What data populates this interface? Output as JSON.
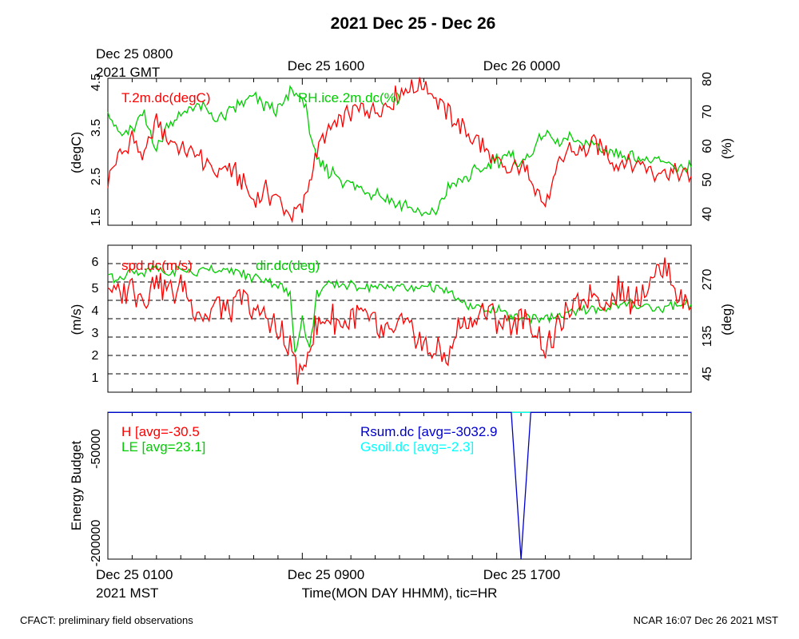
{
  "title": "2021 Dec 25 - Dec 26",
  "top_time_labels": [
    {
      "line1": "Dec 25 0800",
      "line2": "2021 GMT"
    },
    {
      "line1": "Dec 25 1600",
      "line2": ""
    },
    {
      "line1": "Dec 26 0000",
      "line2": ""
    }
  ],
  "bottom_time_labels": [
    {
      "line1": "Dec 25 0100",
      "line2": "2021 MST"
    },
    {
      "line1": "Dec 25 0900",
      "line2": ""
    },
    {
      "line1": "Dec 25 1700",
      "line2": ""
    }
  ],
  "xlabel": "Time(MON DAY HHMM), tic=HR",
  "footer_left": "CFACT: preliminary field observations",
  "footer_right": "NCAR 16:07 Dec 26 2021 MST",
  "colors": {
    "red": "#ff0000",
    "green": "#00cc00",
    "blue": "#0000cc",
    "cyan": "#00ffff",
    "black": "#000000"
  },
  "chart_data": [
    {
      "type": "line",
      "x_range_hours_mst": [
        0,
        24
      ],
      "left_axis": {
        "label": "(degC)",
        "ticks": [
          "1.5",
          "2.5",
          "3.5",
          "4.5"
        ],
        "ylim": [
          1.5,
          4.5
        ]
      },
      "right_axis": {
        "label": "(%)",
        "ticks": [
          "40",
          "50",
          "60",
          "70",
          "80"
        ],
        "ylim": [
          38,
          81
        ]
      },
      "series": [
        {
          "name": "T.2m.dc(degC)",
          "axis": "left",
          "color": "#ff0000",
          "points": [
            [
              0,
              2.4
            ],
            [
              0.5,
              2.9
            ],
            [
              1,
              3.3
            ],
            [
              1.5,
              2.8
            ],
            [
              2,
              3.7
            ],
            [
              2.5,
              3.2
            ],
            [
              3,
              3.1
            ],
            [
              3.5,
              3.0
            ],
            [
              4,
              2.8
            ],
            [
              4.5,
              2.6
            ],
            [
              5,
              2.7
            ],
            [
              5.5,
              2.4
            ],
            [
              6,
              2.0
            ],
            [
              6.5,
              2.2
            ],
            [
              7,
              2.0
            ],
            [
              7.5,
              1.7
            ],
            [
              8,
              1.8
            ],
            [
              8.3,
              2.4
            ],
            [
              8.6,
              3.0
            ],
            [
              9,
              3.3
            ],
            [
              9.5,
              3.6
            ],
            [
              10,
              3.8
            ],
            [
              10.5,
              3.9
            ],
            [
              11,
              3.9
            ],
            [
              11.5,
              4.0
            ],
            [
              12,
              4.2
            ],
            [
              12.5,
              4.3
            ],
            [
              13,
              4.4
            ],
            [
              13.5,
              4.1
            ],
            [
              14,
              3.8
            ],
            [
              14.5,
              3.5
            ],
            [
              15,
              3.3
            ],
            [
              15.5,
              3.1
            ],
            [
              16,
              2.8
            ],
            [
              16.5,
              2.6
            ],
            [
              17,
              2.7
            ],
            [
              17.5,
              2.4
            ],
            [
              18,
              1.9
            ],
            [
              18.5,
              2.6
            ],
            [
              19,
              3.1
            ],
            [
              19.5,
              3.0
            ],
            [
              20,
              3.2
            ],
            [
              20.5,
              3.0
            ],
            [
              21,
              2.8
            ],
            [
              21.5,
              2.7
            ],
            [
              22,
              2.8
            ],
            [
              22.5,
              2.6
            ],
            [
              23,
              2.6
            ],
            [
              23.5,
              2.6
            ],
            [
              24,
              2.5
            ]
          ]
        },
        {
          "name": "RH.ice.2m.dc(%)",
          "axis": "right",
          "color": "#00cc00",
          "points": [
            [
              0,
              72
            ],
            [
              0.5,
              64
            ],
            [
              1,
              66
            ],
            [
              1.5,
              70
            ],
            [
              2,
              60
            ],
            [
              2.5,
              68
            ],
            [
              3,
              70
            ],
            [
              3.5,
              73
            ],
            [
              4,
              72
            ],
            [
              4.5,
              69
            ],
            [
              5,
              71
            ],
            [
              5.5,
              74
            ],
            [
              6,
              75
            ],
            [
              6.5,
              73
            ],
            [
              7,
              71
            ],
            [
              7.5,
              77
            ],
            [
              8,
              76
            ],
            [
              8.3,
              66
            ],
            [
              8.6,
              56
            ],
            [
              9,
              54
            ],
            [
              9.5,
              52
            ],
            [
              10,
              50
            ],
            [
              10.5,
              48
            ],
            [
              11,
              48
            ],
            [
              11.5,
              46
            ],
            [
              12,
              44
            ],
            [
              12.5,
              43
            ],
            [
              13,
              40
            ],
            [
              13.5,
              42
            ],
            [
              14,
              49
            ],
            [
              14.5,
              51
            ],
            [
              15,
              53
            ],
            [
              15.5,
              55
            ],
            [
              16,
              57
            ],
            [
              16.5,
              58
            ],
            [
              17,
              56
            ],
            [
              17.5,
              60
            ],
            [
              18,
              65
            ],
            [
              18.5,
              62
            ],
            [
              19,
              63
            ],
            [
              19.5,
              62
            ],
            [
              20,
              61
            ],
            [
              20.5,
              60
            ],
            [
              21,
              59
            ],
            [
              21.5,
              58
            ],
            [
              22,
              57
            ],
            [
              22.5,
              57
            ],
            [
              23,
              56
            ],
            [
              23.5,
              55
            ],
            [
              24,
              55
            ]
          ]
        }
      ]
    },
    {
      "type": "line",
      "x_range_hours_mst": [
        0,
        24
      ],
      "left_axis": {
        "label": "(m/s)",
        "ticks": [
          "1",
          "2",
          "3",
          "4",
          "5",
          "6"
        ],
        "ylim": [
          0.2,
          6.8
        ]
      },
      "right_axis": {
        "label": "(deg)",
        "ticks": [
          "45",
          "135",
          "270"
        ],
        "ylim": [
          0,
          360
        ]
      },
      "dashed_lines_deg": [
        45,
        90,
        135,
        180,
        225,
        270,
        315
      ],
      "series": [
        {
          "name": "spd.dc(m/s)",
          "axis": "left",
          "color": "#ff0000",
          "points": [
            [
              0,
              5.0
            ],
            [
              0.5,
              4.5
            ],
            [
              1,
              5.0
            ],
            [
              1.5,
              4.2
            ],
            [
              2,
              5.5
            ],
            [
              2.5,
              4.6
            ],
            [
              3,
              5.0
            ],
            [
              3.5,
              4.2
            ],
            [
              4,
              3.6
            ],
            [
              4.5,
              4.3
            ],
            [
              5,
              3.7
            ],
            [
              5.5,
              4.4
            ],
            [
              6,
              3.8
            ],
            [
              6.5,
              3.5
            ],
            [
              7,
              3.0
            ],
            [
              7.5,
              2.2
            ],
            [
              7.8,
              1.2
            ],
            [
              8,
              0.9
            ],
            [
              8.3,
              2.5
            ],
            [
              8.6,
              3.2
            ],
            [
              9,
              3.8
            ],
            [
              9.5,
              3.2
            ],
            [
              10,
              3.5
            ],
            [
              10.5,
              3.8
            ],
            [
              11,
              3.2
            ],
            [
              11.5,
              2.6
            ],
            [
              12,
              3.3
            ],
            [
              12.5,
              3.0
            ],
            [
              13,
              2.4
            ],
            [
              13.5,
              2.0
            ],
            [
              14,
              1.8
            ],
            [
              14.5,
              3.4
            ],
            [
              15,
              3.5
            ],
            [
              15.5,
              3.8
            ],
            [
              16,
              3.6
            ],
            [
              16.5,
              3.2
            ],
            [
              17,
              3.4
            ],
            [
              17.5,
              3.0
            ],
            [
              18,
              2.1
            ],
            [
              18.5,
              3.0
            ],
            [
              19,
              3.8
            ],
            [
              19.5,
              4.4
            ],
            [
              20,
              4.7
            ],
            [
              20.5,
              3.9
            ],
            [
              21,
              4.8
            ],
            [
              21.5,
              4.3
            ],
            [
              22,
              4.7
            ],
            [
              22.5,
              5.6
            ],
            [
              23,
              5.8
            ],
            [
              23.5,
              4.5
            ],
            [
              24,
              4.0
            ]
          ]
        },
        {
          "name": "dir.dc(deg)",
          "axis": "right",
          "color": "#00cc00",
          "points": [
            [
              0,
              290
            ],
            [
              0.5,
              275
            ],
            [
              1,
              300
            ],
            [
              1.5,
              290
            ],
            [
              2,
              305
            ],
            [
              2.5,
              290
            ],
            [
              3,
              300
            ],
            [
              3.5,
              290
            ],
            [
              4,
              305
            ],
            [
              4.5,
              300
            ],
            [
              5,
              298
            ],
            [
              5.5,
              290
            ],
            [
              6,
              280
            ],
            [
              6.5,
              278
            ],
            [
              7,
              265
            ],
            [
              7.5,
              240
            ],
            [
              7.7,
              100
            ],
            [
              8,
              180
            ],
            [
              8.3,
              100
            ],
            [
              8.6,
              240
            ],
            [
              9,
              265
            ],
            [
              9.5,
              262
            ],
            [
              10,
              260
            ],
            [
              10.5,
              258
            ],
            [
              11,
              258
            ],
            [
              11.5,
              255
            ],
            [
              12,
              260
            ],
            [
              12.5,
              250
            ],
            [
              13,
              262
            ],
            [
              13.5,
              255
            ],
            [
              14,
              245
            ],
            [
              14.5,
              220
            ],
            [
              15,
              210
            ],
            [
              15.5,
              205
            ],
            [
              16,
              200
            ],
            [
              16.5,
              188
            ],
            [
              17,
              182
            ],
            [
              17.5,
              185
            ],
            [
              18,
              180
            ],
            [
              18.5,
              185
            ],
            [
              19,
              195
            ],
            [
              19.5,
              198
            ],
            [
              20,
              205
            ],
            [
              20.5,
              210
            ],
            [
              21,
              215
            ],
            [
              21.5,
              215
            ],
            [
              22,
              210
            ],
            [
              22.5,
              205
            ],
            [
              23,
              210
            ],
            [
              23.5,
              215
            ],
            [
              24,
              215
            ]
          ]
        }
      ]
    },
    {
      "type": "line",
      "x_range_hours_mst": [
        0,
        24
      ],
      "left_axis": {
        "label": "Energy Budget",
        "ticks": [
          "-50000",
          "-200000"
        ],
        "ylim": [
          -207000,
          0
        ]
      },
      "annotations": [
        {
          "text": "H [avg=-30.5",
          "color": "#ff0000"
        },
        {
          "text": "LE [avg=23.1]",
          "color": "#00cc00"
        },
        {
          "text": "Rsum.dc [avg=-3032.9",
          "color": "#0000cc"
        },
        {
          "text": "Gsoil.dc [avg=-2.3]",
          "color": "#00ffff"
        }
      ],
      "series": [
        {
          "name": "H",
          "color": "#ff0000",
          "points": [
            [
              0,
              -100
            ],
            [
              24,
              -100
            ]
          ]
        },
        {
          "name": "LE",
          "color": "#00cc00",
          "points": [
            [
              0,
              -100
            ],
            [
              24,
              -100
            ]
          ]
        },
        {
          "name": "Gsoil.dc",
          "color": "#00ffff",
          "points": [
            [
              0,
              -500
            ],
            [
              24,
              -500
            ]
          ]
        },
        {
          "name": "Rsum.dc",
          "color": "#0000cc",
          "points": [
            [
              0,
              -300
            ],
            [
              16.6,
              -300
            ],
            [
              17.0,
              -207000
            ],
            [
              17.4,
              -300
            ],
            [
              24,
              -300
            ]
          ]
        }
      ]
    }
  ]
}
